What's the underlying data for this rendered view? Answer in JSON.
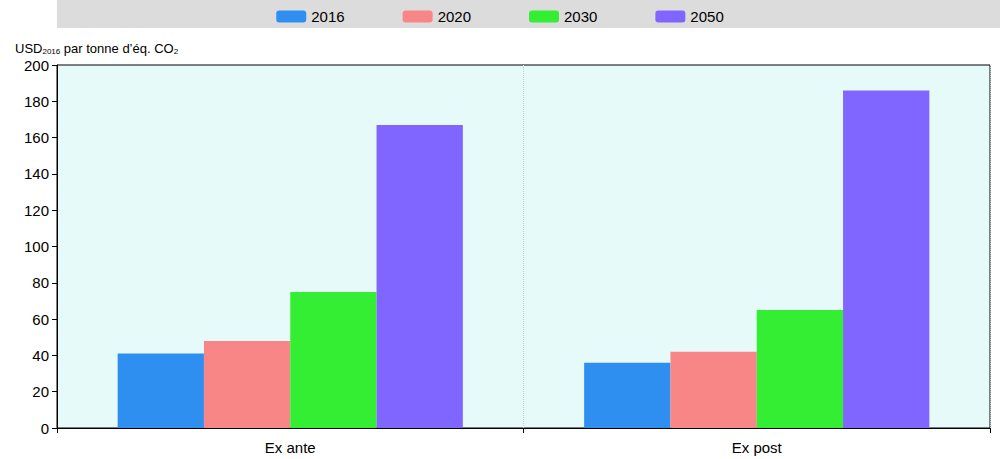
{
  "chart_data": {
    "type": "bar",
    "y_label": "USD2016 par tonne d’éq. CO2",
    "categories": [
      "Ex ante",
      "Ex post"
    ],
    "series": [
      {
        "name": "2016",
        "color": "#2e8ff0",
        "values": [
          41,
          36
        ]
      },
      {
        "name": "2020",
        "color": "#f88686",
        "values": [
          48,
          42
        ]
      },
      {
        "name": "2030",
        "color": "#33ee33",
        "values": [
          75,
          65
        ]
      },
      {
        "name": "2050",
        "color": "#8066ff",
        "values": [
          167,
          186
        ]
      }
    ],
    "ylim": [
      0,
      200
    ],
    "yticks": [
      0,
      20,
      40,
      60,
      80,
      100,
      120,
      140,
      160,
      180,
      200
    ],
    "grid": false,
    "legend": "top"
  }
}
